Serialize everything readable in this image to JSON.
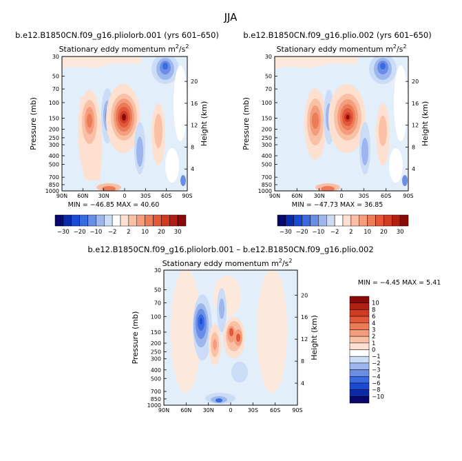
{
  "page": {
    "title": "JJA",
    "diff_title": "b.e12.B1850CN.f09_g16.pliolorb.001 – b.e12.B1850CN.f09_g16.plio.002"
  },
  "panels": [
    {
      "header": "b.e12.B1850CN.f09_g16.pliolorb.001 (yrs 601–650)",
      "subtitle": "Stationary eddy momentum",
      "units_text": "m",
      "units_sup1": "2",
      "units_mid": "/s",
      "units_sup2": "2",
      "stats": "MIN = −46.85   MAX =  40.60"
    },
    {
      "header": "b.e12.B1850CN.f09_g16.plio.002 (yrs 601–650)",
      "subtitle": "Stationary eddy momentum",
      "units_text": "m",
      "units_sup1": "2",
      "units_mid": "/s",
      "units_sup2": "2",
      "stats": "MIN = −47.73   MAX =  36.85"
    },
    {
      "header": "",
      "subtitle": "Stationary eddy momentum",
      "units_text": "m",
      "units_sup1": "2",
      "units_mid": "/s",
      "units_sup2": "2",
      "stats": "MIN =   −4.45   MAX =   5.41"
    }
  ],
  "axes": {
    "ylabel": "Pressure (mb)",
    "ylabel_right": "Height (km)",
    "x_ticks": [
      "90N",
      "60N",
      "30N",
      "0",
      "30S",
      "60S",
      "90S"
    ],
    "p_ticks": [
      "30",
      "50",
      "70",
      "100",
      "150",
      "200",
      "250",
      "300",
      "400",
      "500",
      "700",
      "850",
      "1000"
    ],
    "height_ticks": [
      "20",
      "16",
      "12",
      "8",
      "4"
    ]
  },
  "colorbar_full": {
    "labels": [
      "−30",
      "−20",
      "−10",
      "−2",
      "2",
      "10",
      "20",
      "30"
    ],
    "colors": [
      "#08086b",
      "#0a2aa6",
      "#1b4bd4",
      "#3a6ae0",
      "#6a8ee6",
      "#9db7ee",
      "#cadcf6",
      "#ffffff",
      "#fde0d0",
      "#f9c0a6",
      "#f39d7c",
      "#ec7b57",
      "#e3583a",
      "#cf3b23",
      "#b11f12",
      "#8a0a08"
    ]
  },
  "colorbar_diff": {
    "labels": [
      "10",
      "8",
      "6",
      "4",
      "3",
      "2",
      "1",
      "0",
      "−1",
      "−2",
      "−3",
      "−4",
      "−6",
      "−8",
      "−10"
    ],
    "colors": [
      "#8a0a08",
      "#b11f12",
      "#cf3b23",
      "#e3583a",
      "#ec7b57",
      "#f39d7c",
      "#f9c0a6",
      "#fde0d0",
      "#ffffff",
      "#cadcf6",
      "#9db7ee",
      "#6a8ee6",
      "#3a6ae0",
      "#1b4bd4",
      "#0a2aa6",
      "#08086b"
    ]
  }
}
